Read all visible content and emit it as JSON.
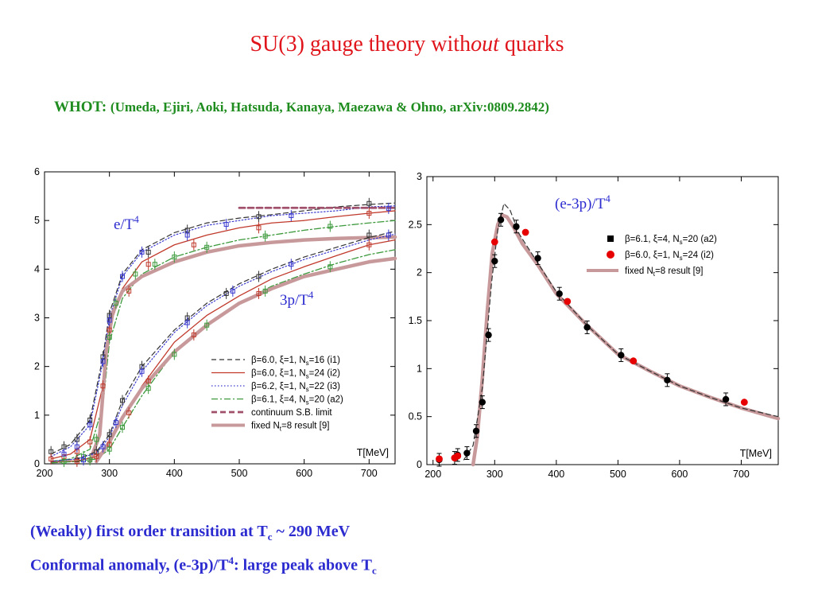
{
  "slide": {
    "title_pre": "SU(3) gauge theory with",
    "title_em": "out",
    "title_post": " quarks",
    "subtitle_label": "WHOT:",
    "subtitle_refs": "(Umeda, Ejiri, Aoki, Hatsuda, Kanaya, Maezawa & Ohno, arXiv:0809.2842)",
    "bottom_line1_pre": "(Weakly) first order transition at T",
    "bottom_line1_sub": "c",
    "bottom_line1_post": " ~ 290 MeV",
    "bottom_line2_pre": "Conformal anomaly, (e-3p)/T",
    "bottom_line2_sup": "4",
    "bottom_line2_mid": ": large peak above T",
    "bottom_line2_sub": "c"
  },
  "colors": {
    "title": "#e0141b",
    "subtitle": "#1e8c1e",
    "bottom_text": "#2b2bd0",
    "annotation": "#2b2bd0",
    "i1": "#333333",
    "i2": "#c0392b",
    "i3": "#3a3acf",
    "a2": "#3c9a3c",
    "sb": "#a0506a",
    "fixed": "#c8999b",
    "a2_marker": "#000000",
    "i2_marker": "#e60000"
  },
  "chart_data": [
    {
      "type": "line",
      "annotation_e": "e/T",
      "annotation_p": "3p/T",
      "annotation_sup": "4",
      "xlabel": "T[MeV]",
      "xlim": [
        200,
        740
      ],
      "ylim": [
        0,
        6
      ],
      "xticks": [
        "200",
        "300",
        "400",
        "500",
        "600",
        "700"
      ],
      "yticks": [
        "0",
        "1",
        "2",
        "3",
        "4",
        "5",
        "6"
      ],
      "legend_position": "bottom-right",
      "legend": [
        {
          "key": "i1",
          "text": "β=6.0, ξ=1, N",
          "sub": "s",
          "post": "=16 (i1)",
          "style": "dashed"
        },
        {
          "key": "i2",
          "text": "β=6.0, ξ=1, N",
          "sub": "s",
          "post": "=24 (i2)",
          "style": "solid"
        },
        {
          "key": "i3",
          "text": "β=6.2, ξ=1, N",
          "sub": "s",
          "post": "=22 (i3)",
          "style": "dotted"
        },
        {
          "key": "a2",
          "text": "β=6.1, ξ=4, N",
          "sub": "s",
          "post": "=20 (a2)",
          "style": "dashdot"
        },
        {
          "key": "sb",
          "text": "continuum S.B. limit",
          "sub": "",
          "post": "",
          "style": "thickdash"
        },
        {
          "key": "fixed",
          "text": "fixed N",
          "sub": "t",
          "post": "=8 result [9]",
          "style": "thick"
        }
      ],
      "series": [
        {
          "name": "e/T4 i1",
          "color_key": "i1",
          "x": [
            210,
            240,
            270,
            290,
            300,
            320,
            350,
            400,
            450,
            500,
            550,
            600,
            650,
            700,
            740
          ],
          "y": [
            0.2,
            0.4,
            0.9,
            2.2,
            3.1,
            3.9,
            4.4,
            4.75,
            4.95,
            5.05,
            5.12,
            5.2,
            5.28,
            5.33,
            5.36
          ]
        },
        {
          "name": "e/T4 i2",
          "color_key": "i2",
          "x": [
            210,
            240,
            270,
            290,
            300,
            320,
            350,
            400,
            450,
            500,
            550,
            600,
            650,
            700,
            740
          ],
          "y": [
            0.1,
            0.2,
            0.5,
            1.6,
            2.8,
            3.6,
            4.15,
            4.5,
            4.7,
            4.85,
            4.95,
            5.0,
            5.08,
            5.15,
            5.2
          ]
        },
        {
          "name": "e/T4 i3",
          "color_key": "i3",
          "x": [
            210,
            240,
            270,
            290,
            300,
            320,
            350,
            400,
            450,
            500,
            550,
            600,
            650,
            700,
            740
          ],
          "y": [
            0.15,
            0.35,
            0.8,
            2.1,
            3.0,
            3.85,
            4.35,
            4.7,
            4.9,
            5.0,
            5.1,
            5.15,
            5.2,
            5.28,
            5.3
          ]
        },
        {
          "name": "e/T4 a2",
          "color_key": "a2",
          "x": [
            210,
            240,
            270,
            290,
            300,
            320,
            350,
            400,
            450,
            500,
            550,
            600,
            650,
            700,
            740
          ],
          "y": [
            0.05,
            0.1,
            0.3,
            1.2,
            2.5,
            3.4,
            3.9,
            4.25,
            4.45,
            4.6,
            4.7,
            4.8,
            4.88,
            4.95,
            5.0
          ]
        },
        {
          "name": "SB limit",
          "color_key": "sb",
          "x": [
            500,
            740
          ],
          "y": [
            5.26,
            5.26
          ]
        },
        {
          "name": "e/T4 fixed",
          "color_key": "fixed",
          "x": [
            270,
            285,
            295,
            305,
            320,
            350,
            400,
            450,
            500,
            550,
            600,
            650,
            700,
            740
          ],
          "y": [
            0.05,
            0.6,
            2.3,
            3.1,
            3.55,
            3.85,
            4.15,
            4.35,
            4.48,
            4.55,
            4.6,
            4.63,
            4.65,
            4.66
          ]
        },
        {
          "name": "3p/T4 i1",
          "color_key": "i1",
          "x": [
            210,
            250,
            280,
            300,
            320,
            350,
            400,
            450,
            500,
            550,
            600,
            650,
            700,
            740
          ],
          "y": [
            0.05,
            0.1,
            0.25,
            0.6,
            1.3,
            2.0,
            2.75,
            3.3,
            3.7,
            4.0,
            4.25,
            4.45,
            4.65,
            4.78
          ]
        },
        {
          "name": "3p/T4 i2",
          "color_key": "i2",
          "x": [
            210,
            250,
            280,
            300,
            320,
            350,
            400,
            450,
            500,
            550,
            600,
            650,
            700,
            740
          ],
          "y": [
            0.03,
            0.06,
            0.15,
            0.4,
            0.9,
            1.6,
            2.5,
            3.05,
            3.45,
            3.8,
            4.05,
            4.28,
            4.5,
            4.6
          ]
        },
        {
          "name": "3p/T4 i3",
          "color_key": "i3",
          "x": [
            210,
            250,
            280,
            300,
            320,
            350,
            400,
            450,
            500,
            550,
            600,
            650,
            700,
            740
          ],
          "y": [
            0.05,
            0.1,
            0.22,
            0.55,
            1.2,
            1.9,
            2.7,
            3.25,
            3.65,
            3.95,
            4.2,
            4.4,
            4.6,
            4.72
          ]
        },
        {
          "name": "3p/T4 a2",
          "color_key": "a2",
          "x": [
            210,
            250,
            280,
            300,
            320,
            350,
            400,
            450,
            500,
            550,
            600,
            650,
            700,
            740
          ],
          "y": [
            0.02,
            0.05,
            0.1,
            0.3,
            0.75,
            1.4,
            2.3,
            2.85,
            3.3,
            3.65,
            3.9,
            4.12,
            4.3,
            4.4
          ]
        },
        {
          "name": "3p/T4 fixed",
          "color_key": "fixed",
          "x": [
            280,
            300,
            320,
            350,
            400,
            450,
            500,
            550,
            600,
            650,
            700,
            740
          ],
          "y": [
            0.05,
            0.45,
            0.95,
            1.55,
            2.3,
            2.85,
            3.3,
            3.6,
            3.85,
            4.0,
            4.15,
            4.22
          ]
        }
      ],
      "points": [
        {
          "color_key": "i1",
          "x": [
            210,
            230,
            250,
            270,
            290,
            300,
            320,
            360,
            420,
            530,
            700
          ],
          "y": [
            0.25,
            0.35,
            0.5,
            0.9,
            2.2,
            3.05,
            3.85,
            4.35,
            4.8,
            5.08,
            5.35
          ]
        },
        {
          "color_key": "i2",
          "x": [
            210,
            230,
            250,
            270,
            290,
            300,
            330,
            360,
            430,
            530,
            700
          ],
          "y": [
            0.1,
            0.15,
            0.25,
            0.45,
            1.6,
            2.75,
            3.55,
            4.1,
            4.5,
            4.85,
            5.15
          ]
        },
        {
          "color_key": "i3",
          "x": [
            230,
            250,
            270,
            290,
            300,
            320,
            350,
            420,
            480,
            580,
            730
          ],
          "y": [
            0.2,
            0.35,
            0.8,
            2.1,
            2.95,
            3.85,
            4.35,
            4.7,
            4.92,
            5.1,
            5.25
          ]
        },
        {
          "color_key": "a2",
          "x": [
            230,
            260,
            280,
            300,
            310,
            340,
            370,
            400,
            450,
            540,
            640
          ],
          "y": [
            0.05,
            0.15,
            0.5,
            2.6,
            3.3,
            3.9,
            4.1,
            4.25,
            4.45,
            4.68,
            4.88
          ]
        },
        {
          "color_key": "i1",
          "x": [
            250,
            280,
            300,
            320,
            350,
            420,
            480,
            530,
            700
          ],
          "y": [
            0.08,
            0.25,
            0.6,
            1.3,
            2.0,
            3.0,
            3.5,
            3.85,
            4.7
          ]
        },
        {
          "color_key": "i2",
          "x": [
            250,
            280,
            300,
            330,
            360,
            430,
            530,
            700
          ],
          "y": [
            0.05,
            0.15,
            0.4,
            1.05,
            1.7,
            2.65,
            3.5,
            4.5
          ]
        },
        {
          "color_key": "i3",
          "x": [
            260,
            290,
            310,
            350,
            420,
            490,
            580,
            730
          ],
          "y": [
            0.08,
            0.35,
            0.85,
            1.9,
            2.9,
            3.55,
            4.1,
            4.7
          ]
        },
        {
          "color_key": "a2",
          "x": [
            270,
            300,
            320,
            360,
            400,
            450,
            540,
            640
          ],
          "y": [
            0.08,
            0.3,
            0.75,
            1.55,
            2.25,
            2.85,
            3.55,
            4.05
          ]
        }
      ]
    },
    {
      "type": "scatter",
      "annotation": "(e-3p)/T",
      "annotation_sup": "4",
      "xlabel": "T[MeV]",
      "xlim": [
        190,
        760
      ],
      "ylim": [
        0,
        3
      ],
      "xticks": [
        "200",
        "300",
        "400",
        "500",
        "600",
        "700"
      ],
      "yticks": [
        "0",
        "0.5",
        "1",
        "1.5",
        "2",
        "2.5",
        "3"
      ],
      "legend_position": "top-right",
      "legend": [
        {
          "key": "a2_marker",
          "text": "β=6.1, ξ=4, N",
          "sub": "s",
          "post": "=20 (a2)",
          "style": "square"
        },
        {
          "key": "i2_marker",
          "text": "β=6.0, ξ=1, N",
          "sub": "s",
          "post": "=24 (i2)",
          "style": "circle"
        },
        {
          "key": "fixed",
          "text": "fixed N",
          "sub": "t",
          "post": "=8 result [9]",
          "style": "thick"
        }
      ],
      "series": [
        {
          "name": "fixed Nt=8",
          "color_key": "fixed",
          "x": [
            265,
            272,
            280,
            288,
            296,
            305,
            312,
            320,
            330,
            345,
            370,
            400,
            450,
            500,
            550,
            600,
            650,
            700,
            760
          ],
          "y": [
            0.0,
            0.3,
            0.9,
            1.6,
            2.2,
            2.5,
            2.6,
            2.58,
            2.48,
            2.3,
            2.08,
            1.78,
            1.45,
            1.15,
            0.98,
            0.82,
            0.7,
            0.59,
            0.48
          ]
        },
        {
          "name": "guide dotted",
          "color_key": "i1",
          "x": [
            250,
            265,
            280,
            295,
            305,
            315,
            325,
            340,
            370,
            400,
            450,
            500,
            550,
            600,
            650,
            700,
            760
          ],
          "y": [
            0.05,
            0.2,
            0.8,
            1.9,
            2.45,
            2.72,
            2.65,
            2.4,
            2.1,
            1.8,
            1.45,
            1.15,
            0.98,
            0.82,
            0.7,
            0.59,
            0.5
          ]
        }
      ],
      "points_a2": {
        "x": [
          210,
          235,
          240,
          255,
          270,
          280,
          290,
          300,
          310,
          335,
          370,
          405,
          450,
          505,
          580,
          675
        ],
        "y": [
          0.05,
          0.07,
          0.1,
          0.12,
          0.35,
          0.65,
          1.35,
          2.12,
          2.55,
          2.48,
          2.15,
          1.78,
          1.43,
          1.14,
          0.88,
          0.68
        ]
      },
      "points_i2": {
        "x": [
          210,
          235,
          240,
          300,
          350,
          418,
          525,
          705
        ],
        "y": [
          0.06,
          0.07,
          0.09,
          2.32,
          2.42,
          1.7,
          1.08,
          0.65
        ]
      }
    }
  ]
}
